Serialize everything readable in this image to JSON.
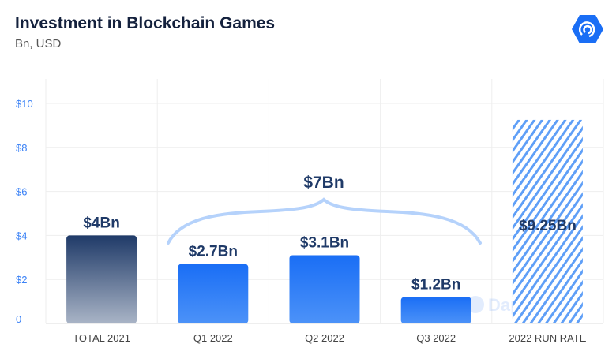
{
  "header": {
    "title": "Investment in Blockchain Games",
    "subtitle": "Bn, USD",
    "logo_icon": "dappradar-logo-icon"
  },
  "watermark": "DappRadar",
  "colors": {
    "title": "#14213d",
    "label": "#1f3a68",
    "bar": "#1a6ef5",
    "hatch": "#5f9ff7",
    "brace": "#b5d2fb",
    "total_top": "#1f3a68",
    "total_bottom": "#a9b4c6",
    "axis_text": "#3b82f6"
  },
  "chart_data": {
    "type": "bar",
    "title": "Investment in Blockchain Games",
    "subtitle": "Bn, USD",
    "categories": [
      "TOTAL 2021",
      "Q1 2022",
      "Q2 2022",
      "Q3 2022",
      "2022 RUN RATE"
    ],
    "values": [
      4,
      2.7,
      3.1,
      1.2,
      9.25
    ],
    "data_labels": [
      "$4Bn",
      "$2.7Bn",
      "$3.1Bn",
      "$1.2Bn",
      "$9.25Bn"
    ],
    "styles": [
      "gradient",
      "solid",
      "solid",
      "solid",
      "hatched"
    ],
    "ylim": [
      0,
      10
    ],
    "yticks": [
      0,
      2,
      4,
      6,
      8,
      10
    ],
    "ytick_labels": [
      "0",
      "$2",
      "$4",
      "$6",
      "$8",
      "$10"
    ],
    "grid": true,
    "annotations": [
      {
        "text": "$7Bn",
        "type": "brace",
        "spans": [
          "Q1 2022",
          "Q3 2022"
        ]
      }
    ]
  }
}
